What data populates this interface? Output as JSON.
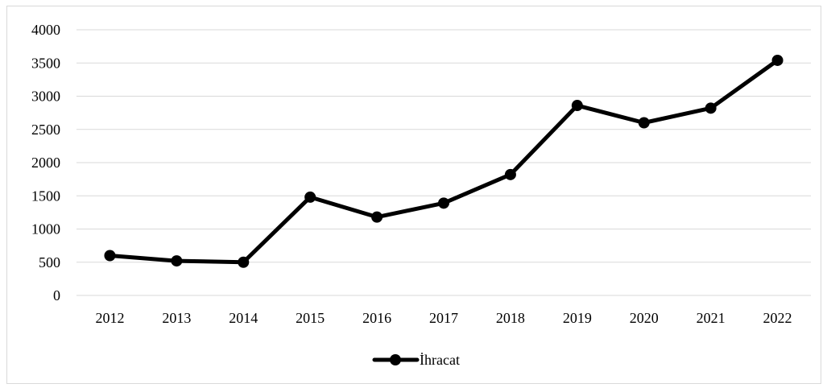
{
  "chart_data": {
    "type": "line",
    "categories": [
      "2012",
      "2013",
      "2014",
      "2015",
      "2016",
      "2017",
      "2018",
      "2019",
      "2020",
      "2021",
      "2022"
    ],
    "series": [
      {
        "name": "İhracat",
        "values": [
          600,
          520,
          500,
          1480,
          1180,
          1390,
          1820,
          2860,
          2600,
          2820,
          3540
        ],
        "color": "#000000",
        "marker": "circle"
      }
    ],
    "y_ticks": [
      "0",
      "500",
      "1000",
      "1500",
      "2000",
      "2500",
      "3000",
      "3500",
      "4000"
    ],
    "ylim": [
      0,
      4000
    ],
    "grid": true,
    "legend_position": "bottom"
  }
}
